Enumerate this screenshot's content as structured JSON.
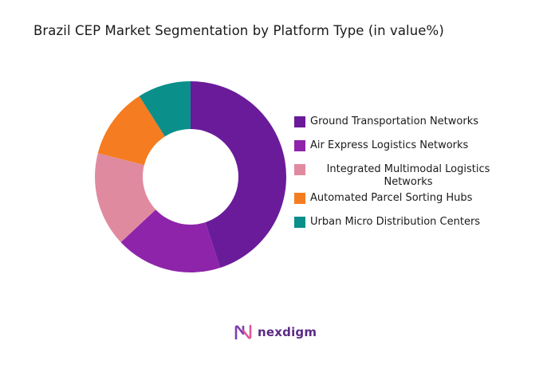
{
  "title": "Brazil CEP Market Segmentation by Platform Type (in value%)",
  "chart_data": {
    "type": "pie",
    "donut": true,
    "title": "Brazil CEP Market Segmentation by Platform Type (in value%)",
    "legend_position": "right",
    "series": [
      {
        "name": "Ground Transportation Networks",
        "value": 45,
        "color": "#6a1b9a"
      },
      {
        "name": "Air Express Logistics Networks",
        "value": 18,
        "color": "#8e24aa"
      },
      {
        "name": "Integrated Multimodal Logistics Networks",
        "value": 16,
        "color": "#e08aa0"
      },
      {
        "name": "Automated Parcel Sorting Hubs",
        "value": 12,
        "color": "#f57c20"
      },
      {
        "name": "Urban Micro Distribution Centers",
        "value": 9,
        "color": "#0a8f8a"
      }
    ]
  },
  "brand": {
    "name": "nexdigm",
    "color": "#5b2a86"
  }
}
